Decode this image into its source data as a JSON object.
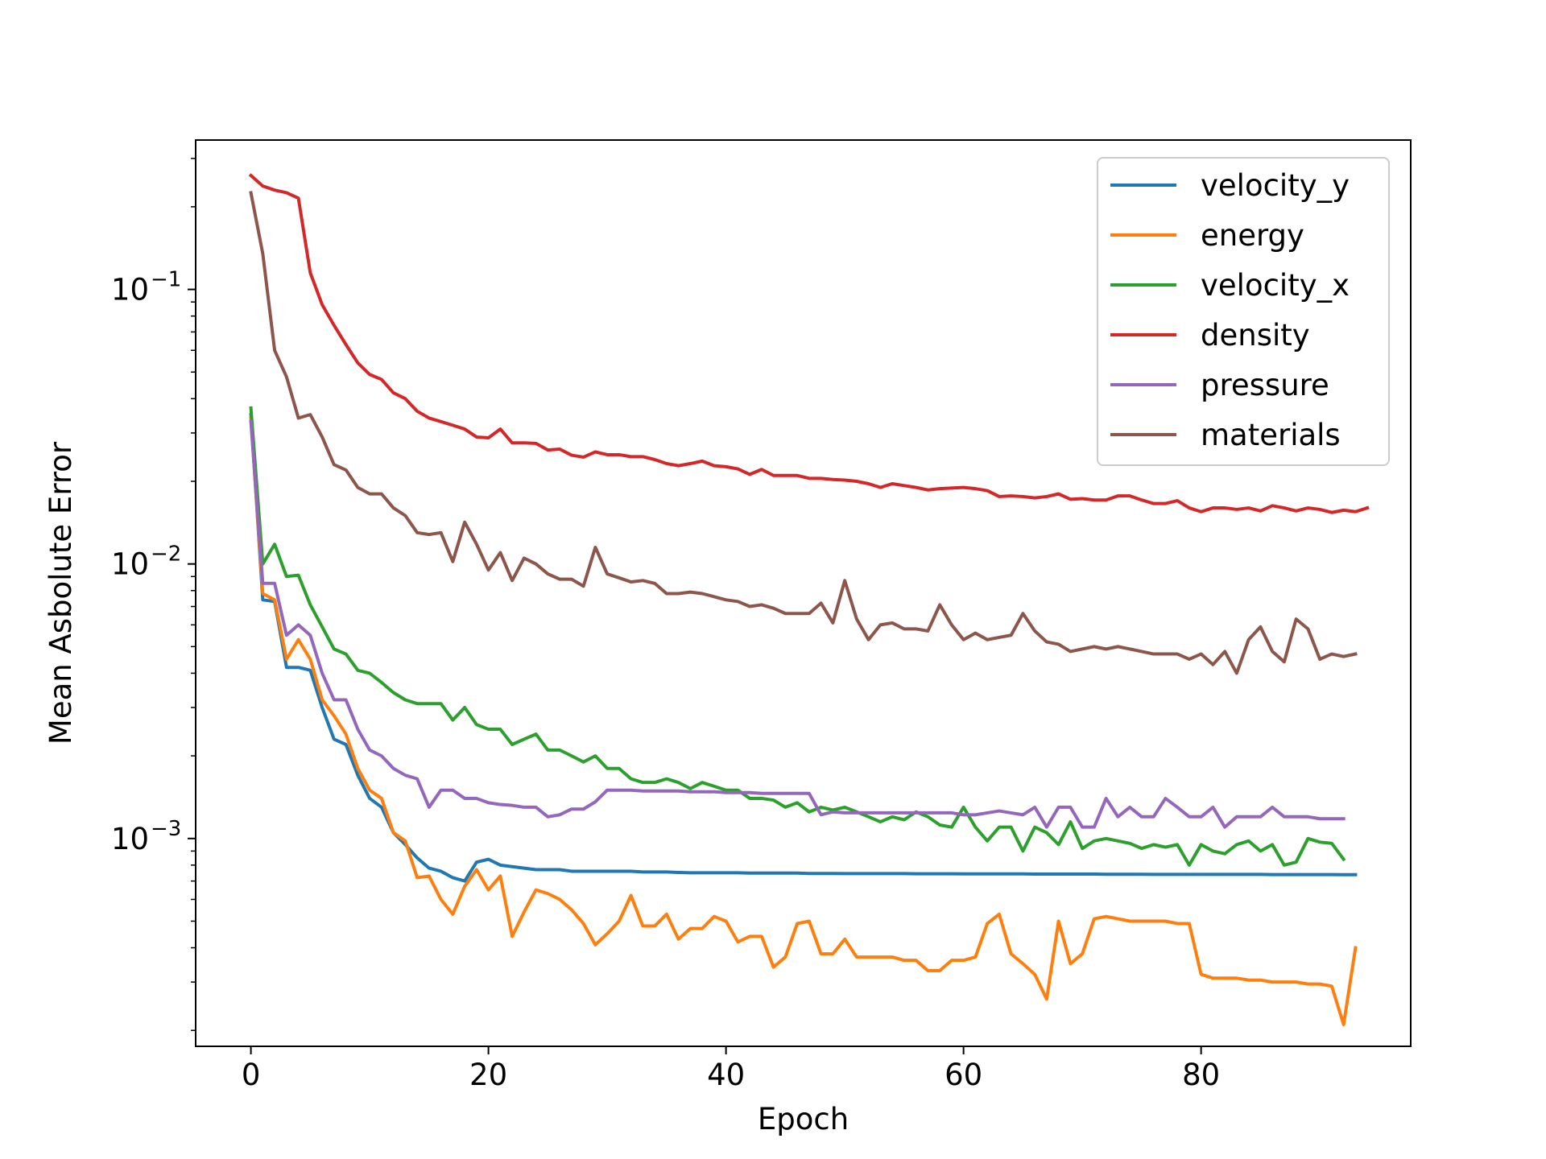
{
  "chart_data": {
    "type": "line",
    "title": "",
    "xlabel": "Epoch",
    "ylabel": "Mean Asbolute Error",
    "yscale": "log",
    "xlim": [
      -4.65,
      97.65
    ],
    "ylim": [
      0.000175,
      0.35
    ],
    "xticks": [
      0,
      20,
      40,
      60,
      80
    ],
    "xtick_labels": [
      "0",
      "20",
      "40",
      "60",
      "80"
    ],
    "yticks": [
      0.1,
      0.01,
      0.001
    ],
    "ytick_labels": [
      {
        "base": "10",
        "exp": "−1"
      },
      {
        "base": "10",
        "exp": "−2"
      },
      {
        "base": "10",
        "exp": "−3"
      }
    ],
    "grid": false,
    "legend_position": "top-right",
    "series": [
      {
        "name": "velocity_y",
        "color": "#1f77b4",
        "values": [
          0.035,
          0.0074,
          0.0073,
          0.0042,
          0.0042,
          0.0041,
          0.003,
          0.0023,
          0.0022,
          0.0017,
          0.0014,
          0.0013,
          0.00105,
          0.00095,
          0.00085,
          0.00078,
          0.00076,
          0.00072,
          0.0007,
          0.00082,
          0.00084,
          0.0008,
          0.00079,
          0.00078,
          0.00077,
          0.00077,
          0.00077,
          0.00076,
          0.00076,
          0.00076,
          0.00076,
          0.00076,
          0.00076,
          0.000755,
          0.000755,
          0.000755,
          0.000752,
          0.00075,
          0.00075,
          0.00075,
          0.00075,
          0.00075,
          0.000748,
          0.000748,
          0.000748,
          0.000748,
          0.000748,
          0.000746,
          0.000746,
          0.000746,
          0.000745,
          0.000745,
          0.000745,
          0.000745,
          0.000745,
          0.000745,
          0.000744,
          0.000744,
          0.000744,
          0.000744,
          0.000743,
          0.000743,
          0.000743,
          0.000743,
          0.000743,
          0.000743,
          0.000742,
          0.000742,
          0.000742,
          0.000742,
          0.000742,
          0.000742,
          0.000741,
          0.000741,
          0.000741,
          0.000741,
          0.00074,
          0.00074,
          0.00074,
          0.00074,
          0.00074,
          0.00074,
          0.00074,
          0.00074,
          0.00074,
          0.00074,
          0.000739,
          0.000739,
          0.000739,
          0.000739,
          0.000739,
          0.000739,
          0.000738,
          0.000738
        ]
      },
      {
        "name": "energy",
        "color": "#ff7f0e",
        "values": [
          0.034,
          0.0078,
          0.0074,
          0.0045,
          0.0053,
          0.0045,
          0.0032,
          0.0028,
          0.0024,
          0.0018,
          0.0015,
          0.0014,
          0.00105,
          0.00098,
          0.00072,
          0.00073,
          0.0006,
          0.00053,
          0.00067,
          0.00077,
          0.00065,
          0.00073,
          0.00044,
          0.00054,
          0.00065,
          0.00063,
          0.0006,
          0.00055,
          0.00049,
          0.00041,
          0.00045,
          0.0005,
          0.00062,
          0.00048,
          0.00048,
          0.00053,
          0.00043,
          0.00047,
          0.00047,
          0.00052,
          0.0005,
          0.00042,
          0.00044,
          0.00044,
          0.00034,
          0.00037,
          0.00049,
          0.0005,
          0.00038,
          0.00038,
          0.00043,
          0.00037,
          0.00037,
          0.00037,
          0.00037,
          0.00036,
          0.00036,
          0.00033,
          0.00033,
          0.00036,
          0.00036,
          0.00037,
          0.00049,
          0.00053,
          0.00038,
          0.00035,
          0.00032,
          0.00026,
          0.0005,
          0.00035,
          0.00038,
          0.00051,
          0.00052,
          0.00051,
          0.0005,
          0.0005,
          0.0005,
          0.0005,
          0.00049,
          0.00049,
          0.00032,
          0.00031,
          0.00031,
          0.00031,
          0.000305,
          0.000305,
          0.0003,
          0.0003,
          0.0003,
          0.000295,
          0.000295,
          0.00029,
          0.00021,
          0.0004
        ]
      },
      {
        "name": "velocity_x",
        "color": "#2ca02c",
        "values": [
          0.037,
          0.01,
          0.0118,
          0.009,
          0.0091,
          0.0071,
          0.0059,
          0.0049,
          0.0047,
          0.0041,
          0.004,
          0.0037,
          0.0034,
          0.0032,
          0.0031,
          0.0031,
          0.0031,
          0.0027,
          0.003,
          0.0026,
          0.0025,
          0.0025,
          0.0022,
          0.0023,
          0.0024,
          0.0021,
          0.0021,
          0.002,
          0.0019,
          0.002,
          0.0018,
          0.0018,
          0.00165,
          0.0016,
          0.0016,
          0.00165,
          0.0016,
          0.00152,
          0.0016,
          0.00155,
          0.0015,
          0.0015,
          0.0014,
          0.0014,
          0.00138,
          0.0013,
          0.00135,
          0.00125,
          0.0013,
          0.00127,
          0.0013,
          0.00125,
          0.0012,
          0.00115,
          0.0012,
          0.00117,
          0.00125,
          0.0012,
          0.00112,
          0.0011,
          0.0013,
          0.0011,
          0.00098,
          0.0011,
          0.0011,
          0.0009,
          0.0011,
          0.00105,
          0.00095,
          0.00115,
          0.00092,
          0.00098,
          0.001,
          0.00098,
          0.00096,
          0.00092,
          0.00095,
          0.00093,
          0.00095,
          0.0008,
          0.00095,
          0.0009,
          0.00088,
          0.00095,
          0.00098,
          0.0009,
          0.00095,
          0.0008,
          0.00082,
          0.001,
          0.00097,
          0.00096,
          0.00084
        ]
      },
      {
        "name": "density",
        "color": "#d62728",
        "values": [
          0.26,
          0.238,
          0.23,
          0.225,
          0.215,
          0.115,
          0.088,
          0.074,
          0.063,
          0.054,
          0.049,
          0.047,
          0.042,
          0.04,
          0.036,
          0.034,
          0.033,
          0.032,
          0.031,
          0.029,
          0.0288,
          0.031,
          0.0276,
          0.0276,
          0.0275,
          0.026,
          0.0262,
          0.0249,
          0.0245,
          0.0256,
          0.025,
          0.025,
          0.0246,
          0.0246,
          0.024,
          0.0232,
          0.0228,
          0.0232,
          0.0237,
          0.0228,
          0.0226,
          0.0222,
          0.0212,
          0.0221,
          0.021,
          0.021,
          0.021,
          0.0205,
          0.0205,
          0.0203,
          0.0202,
          0.02,
          0.0196,
          0.019,
          0.0196,
          0.0193,
          0.019,
          0.0186,
          0.0188,
          0.0189,
          0.019,
          0.0188,
          0.0185,
          0.0176,
          0.0177,
          0.0176,
          0.0174,
          0.0176,
          0.018,
          0.0172,
          0.0173,
          0.0171,
          0.0171,
          0.0177,
          0.0177,
          0.0171,
          0.0166,
          0.0166,
          0.017,
          0.016,
          0.0155,
          0.016,
          0.016,
          0.0158,
          0.016,
          0.0156,
          0.0163,
          0.016,
          0.0156,
          0.016,
          0.0158,
          0.0154,
          0.0157,
          0.0155,
          0.016
        ]
      },
      {
        "name": "pressure",
        "color": "#9467bd",
        "values": [
          0.033,
          0.0085,
          0.0085,
          0.0055,
          0.006,
          0.0055,
          0.004,
          0.0032,
          0.0032,
          0.0025,
          0.0021,
          0.002,
          0.0018,
          0.0017,
          0.00165,
          0.0013,
          0.0015,
          0.0015,
          0.0014,
          0.0014,
          0.00135,
          0.00133,
          0.00132,
          0.0013,
          0.0013,
          0.0012,
          0.00122,
          0.00128,
          0.00128,
          0.00136,
          0.0015,
          0.0015,
          0.0015,
          0.00149,
          0.00149,
          0.00149,
          0.00149,
          0.00148,
          0.00148,
          0.00148,
          0.00147,
          0.00147,
          0.00147,
          0.00146,
          0.00146,
          0.00146,
          0.00146,
          0.00146,
          0.00122,
          0.00125,
          0.00124,
          0.00124,
          0.00124,
          0.00124,
          0.00124,
          0.00124,
          0.00124,
          0.00124,
          0.00124,
          0.00124,
          0.00122,
          0.00122,
          0.00124,
          0.00126,
          0.00124,
          0.00122,
          0.0013,
          0.0011,
          0.0013,
          0.0013,
          0.0011,
          0.0011,
          0.0014,
          0.0012,
          0.0013,
          0.0012,
          0.0012,
          0.0014,
          0.0013,
          0.0012,
          0.0012,
          0.0013,
          0.0011,
          0.0012,
          0.0012,
          0.0012,
          0.0013,
          0.0012,
          0.0012,
          0.0012,
          0.00118,
          0.00118,
          0.00118
        ]
      },
      {
        "name": "materials",
        "color": "#8c564b",
        "values": [
          0.225,
          0.135,
          0.06,
          0.048,
          0.034,
          0.035,
          0.029,
          0.023,
          0.022,
          0.019,
          0.018,
          0.018,
          0.016,
          0.015,
          0.013,
          0.0128,
          0.013,
          0.0102,
          0.0142,
          0.0118,
          0.0095,
          0.011,
          0.0087,
          0.0105,
          0.01,
          0.0092,
          0.0088,
          0.0088,
          0.0083,
          0.0115,
          0.0092,
          0.0089,
          0.0086,
          0.0087,
          0.0085,
          0.0078,
          0.0078,
          0.0079,
          0.0078,
          0.0076,
          0.0074,
          0.0073,
          0.007,
          0.0071,
          0.0069,
          0.0066,
          0.0066,
          0.0066,
          0.0072,
          0.0061,
          0.0087,
          0.0063,
          0.0053,
          0.006,
          0.0061,
          0.0058,
          0.0058,
          0.0057,
          0.0071,
          0.006,
          0.0053,
          0.0056,
          0.0053,
          0.0054,
          0.0055,
          0.0066,
          0.0057,
          0.0052,
          0.0051,
          0.0048,
          0.0049,
          0.005,
          0.0049,
          0.005,
          0.0049,
          0.0048,
          0.0047,
          0.0047,
          0.0047,
          0.0045,
          0.0047,
          0.0043,
          0.0048,
          0.004,
          0.0053,
          0.0059,
          0.0048,
          0.0044,
          0.0063,
          0.0058,
          0.0045,
          0.0047,
          0.0046,
          0.0047
        ]
      }
    ]
  }
}
